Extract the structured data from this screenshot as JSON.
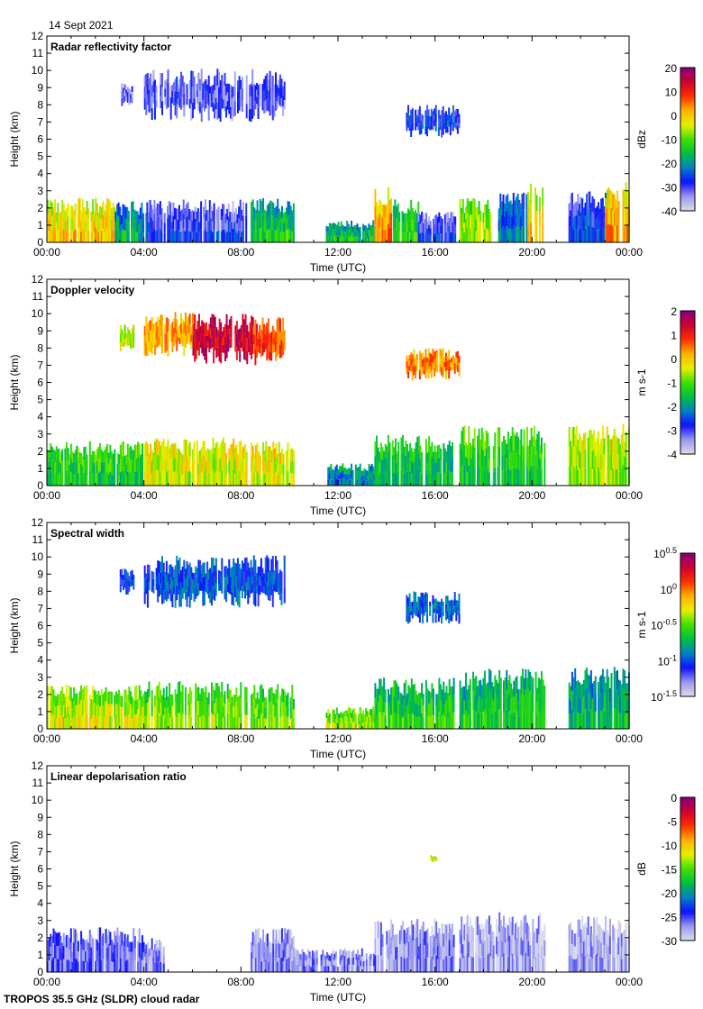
{
  "header": {
    "date": "14 Sept 2021"
  },
  "footer": {
    "label": "TROPOS 35.5 GHz (SLDR) cloud radar"
  },
  "colormap": [
    "#dcdcec",
    "#9898f0",
    "#1010ff",
    "#0080c8",
    "#00c040",
    "#40e000",
    "#e8f000",
    "#ffb000",
    "#ff3000",
    "#d00030",
    "#800080"
  ],
  "chart_data": [
    {
      "type": "heatmap",
      "title": "Radar reflectivity factor",
      "xlabel": "Time (UTC)",
      "ylabel": "Height (km)",
      "xlim": [
        0,
        24
      ],
      "ylim": [
        0,
        12
      ],
      "xticks": [
        "00:00",
        "04:00",
        "08:00",
        "12:00",
        "16:00",
        "20:00",
        "00:00"
      ],
      "yticks": [
        "0",
        "1",
        "2",
        "3",
        "4",
        "5",
        "6",
        "7",
        "8",
        "9",
        "10",
        "11",
        "12"
      ],
      "colorbar": {
        "label": "dBz",
        "range": [
          -40,
          20
        ],
        "ticks": [
          "20",
          "10",
          "0",
          "-10",
          "-20",
          "-30",
          "-40"
        ]
      },
      "regions": [
        {
          "t": [
            3.0,
            3.6
          ],
          "h": [
            7.8,
            9.4
          ],
          "v": -33
        },
        {
          "t": [
            4.0,
            9.8
          ],
          "h": [
            7.0,
            10.1
          ],
          "v": -31
        },
        {
          "t": [
            14.8,
            17.0
          ],
          "h": [
            6.1,
            8.0
          ],
          "v": -27
        },
        {
          "t": [
            0,
            2.8
          ],
          "h": [
            0,
            2.6
          ],
          "v": -4
        },
        {
          "t": [
            2.8,
            4.1
          ],
          "h": [
            0,
            2.4
          ],
          "v": -22
        },
        {
          "t": [
            4.1,
            8.2
          ],
          "h": [
            0,
            2.5
          ],
          "v": -32
        },
        {
          "t": [
            8.4,
            10.2
          ],
          "h": [
            0,
            2.6
          ],
          "v": -18
        },
        {
          "t": [
            11.5,
            13.5
          ],
          "h": [
            0,
            1.3
          ],
          "v": -20
        },
        {
          "t": [
            13.5,
            14.2
          ],
          "h": [
            0,
            3.2
          ],
          "v": 0
        },
        {
          "t": [
            14.2,
            15.3
          ],
          "h": [
            0,
            2.5
          ],
          "v": -16
        },
        {
          "t": [
            15.3,
            16.8
          ],
          "h": [
            0,
            1.8
          ],
          "v": -32
        },
        {
          "t": [
            17.0,
            18.3
          ],
          "h": [
            0,
            2.6
          ],
          "v": -10
        },
        {
          "t": [
            18.6,
            19.8
          ],
          "h": [
            0,
            3.0
          ],
          "v": -25
        },
        {
          "t": [
            19.8,
            20.5
          ],
          "h": [
            0,
            3.5
          ],
          "v": -6
        },
        {
          "t": [
            21.5,
            23.0
          ],
          "h": [
            0,
            3.0
          ],
          "v": -30
        },
        {
          "t": [
            23.0,
            24.0
          ],
          "h": [
            0,
            3.5
          ],
          "v": -2
        }
      ]
    },
    {
      "type": "heatmap",
      "title": "Doppler velocity",
      "xlabel": "Time (UTC)",
      "ylabel": "Height (km)",
      "xlim": [
        0,
        24
      ],
      "ylim": [
        0,
        12
      ],
      "xticks": [
        "00:00",
        "04:00",
        "08:00",
        "12:00",
        "16:00",
        "20:00",
        "00:00"
      ],
      "yticks": [
        "0",
        "1",
        "2",
        "3",
        "4",
        "5",
        "6",
        "7",
        "8",
        "9",
        "10",
        "11",
        "12"
      ],
      "colorbar": {
        "label": "m s-1",
        "range": [
          -4,
          2
        ],
        "ticks": [
          "2",
          "1",
          "0",
          "-1",
          "-2",
          "-3",
          "-4"
        ]
      },
      "regions": [
        {
          "t": [
            3.0,
            3.6
          ],
          "h": [
            7.8,
            9.4
          ],
          "v": -0.5
        },
        {
          "t": [
            4.0,
            6.0
          ],
          "h": [
            7.5,
            10.1
          ],
          "v": 0.2
        },
        {
          "t": [
            6.0,
            8.5
          ],
          "h": [
            7.0,
            10.0
          ],
          "v": 1.4
        },
        {
          "t": [
            8.5,
            9.8
          ],
          "h": [
            7.0,
            9.8
          ],
          "v": 0.8
        },
        {
          "t": [
            14.8,
            17.0
          ],
          "h": [
            6.1,
            8.0
          ],
          "v": 0.4
        },
        {
          "t": [
            0,
            4.0
          ],
          "h": [
            0,
            2.6
          ],
          "v": -1.2
        },
        {
          "t": [
            4.0,
            8.2
          ],
          "h": [
            0,
            2.8
          ],
          "v": -0.3
        },
        {
          "t": [
            8.4,
            10.2
          ],
          "h": [
            0,
            2.6
          ],
          "v": -0.2
        },
        {
          "t": [
            11.5,
            13.5
          ],
          "h": [
            0,
            1.3
          ],
          "v": -2.0
        },
        {
          "t": [
            13.5,
            16.8
          ],
          "h": [
            0,
            3.0
          ],
          "v": -1.4
        },
        {
          "t": [
            17.0,
            20.5
          ],
          "h": [
            0,
            3.5
          ],
          "v": -1.2
        },
        {
          "t": [
            21.5,
            24.0
          ],
          "h": [
            0,
            3.6
          ],
          "v": -0.5
        }
      ]
    },
    {
      "type": "heatmap",
      "title": "Spectral width",
      "xlabel": "Time (UTC)",
      "ylabel": "Height (km)",
      "xlim": [
        0,
        24
      ],
      "ylim": [
        0,
        12
      ],
      "xticks": [
        "00:00",
        "04:00",
        "08:00",
        "12:00",
        "16:00",
        "20:00",
        "00:00"
      ],
      "yticks": [
        "0",
        "1",
        "2",
        "3",
        "4",
        "5",
        "6",
        "7",
        "8",
        "9",
        "10",
        "11",
        "12"
      ],
      "colorbar": {
        "label": "m s-1",
        "range": [
          -1.5,
          0.5
        ],
        "scale": "log10",
        "ticks": [
          {
            "base": "10",
            "exp": "0.5"
          },
          {
            "base": "10",
            "exp": "0"
          },
          {
            "base": "10",
            "exp": "-0.5"
          },
          {
            "base": "10",
            "exp": "-1"
          },
          {
            "base": "10",
            "exp": "-1.5"
          }
        ]
      },
      "regions": [
        {
          "t": [
            3.0,
            3.6
          ],
          "h": [
            7.8,
            9.4
          ],
          "v": -1.05
        },
        {
          "t": [
            4.0,
            9.8
          ],
          "h": [
            7.0,
            10.1
          ],
          "v": -1.0
        },
        {
          "t": [
            14.8,
            17.0
          ],
          "h": [
            6.1,
            8.0
          ],
          "v": -0.95
        },
        {
          "t": [
            0,
            4.0
          ],
          "h": [
            0,
            2.6
          ],
          "v": -0.45
        },
        {
          "t": [
            4.0,
            8.2
          ],
          "h": [
            0,
            2.8
          ],
          "v": -0.55
        },
        {
          "t": [
            8.4,
            10.2
          ],
          "h": [
            0,
            2.6
          ],
          "v": -0.6
        },
        {
          "t": [
            11.5,
            13.5
          ],
          "h": [
            0,
            1.3
          ],
          "v": -0.5
        },
        {
          "t": [
            13.5,
            16.8
          ],
          "h": [
            0,
            3.0
          ],
          "v": -0.7
        },
        {
          "t": [
            17.0,
            20.5
          ],
          "h": [
            0,
            3.5
          ],
          "v": -0.75
        },
        {
          "t": [
            21.5,
            24.0
          ],
          "h": [
            0,
            3.6
          ],
          "v": -0.85
        }
      ]
    },
    {
      "type": "heatmap",
      "title": "Linear depolarisation ratio",
      "xlabel": "Time (UTC)",
      "ylabel": "Height (km)",
      "xlim": [
        0,
        24
      ],
      "ylim": [
        0,
        12
      ],
      "xticks": [
        "00:00",
        "04:00",
        "08:00",
        "12:00",
        "16:00",
        "20:00",
        "00:00"
      ],
      "yticks": [
        "0",
        "1",
        "2",
        "3",
        "4",
        "5",
        "6",
        "7",
        "8",
        "9",
        "10",
        "11",
        "12"
      ],
      "colorbar": {
        "label": "dB",
        "range": [
          -30,
          0
        ],
        "ticks": [
          "0",
          "-5",
          "-10",
          "-15",
          "-20",
          "-25",
          "-30"
        ]
      },
      "regions": [
        {
          "t": [
            0,
            4.0
          ],
          "h": [
            0,
            2.6
          ],
          "v": -26
        },
        {
          "t": [
            4.0,
            4.8
          ],
          "h": [
            0,
            2.0
          ],
          "v": -27
        },
        {
          "t": [
            8.4,
            10.2
          ],
          "h": [
            0,
            2.6
          ],
          "v": -27
        },
        {
          "t": [
            10.2,
            13.5
          ],
          "h": [
            0,
            1.4
          ],
          "v": -27
        },
        {
          "t": [
            13.5,
            16.8
          ],
          "h": [
            0,
            3.2
          ],
          "v": -27
        },
        {
          "t": [
            17.0,
            20.5
          ],
          "h": [
            0,
            3.5
          ],
          "v": -28
        },
        {
          "t": [
            21.5,
            24.0
          ],
          "h": [
            0,
            3.4
          ],
          "v": -28
        },
        {
          "t": [
            15.8,
            16.1
          ],
          "h": [
            6.4,
            6.8
          ],
          "v": -12
        }
      ]
    }
  ]
}
